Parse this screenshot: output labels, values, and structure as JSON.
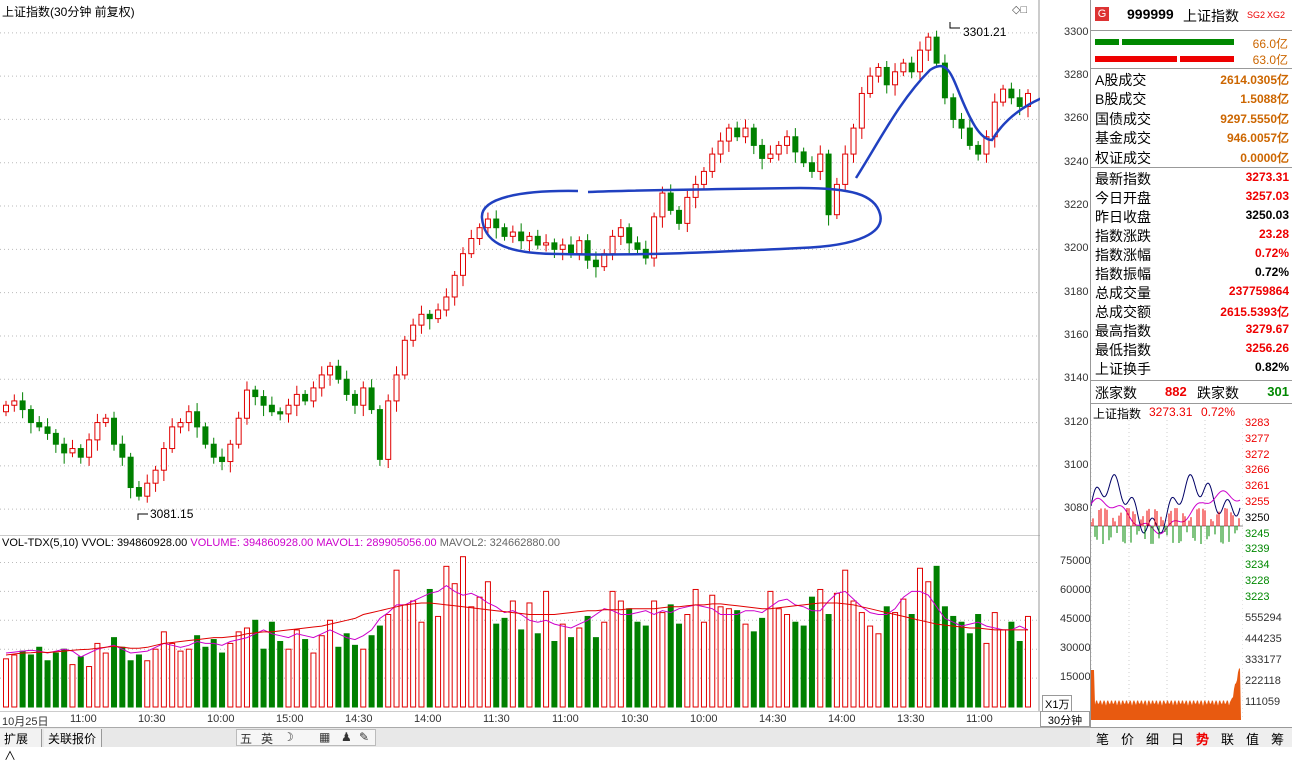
{
  "chart_header": {
    "title": "上证指数(30分钟 前复权)",
    "high_label": "3301.21",
    "low_label": "3081.15"
  },
  "volume_header": {
    "indicator": "VOL-TDX(5,10)",
    "vvol": "VVOL: 394860928.00",
    "volume": "VOLUME: 394860928.00",
    "mavol1": "MAVOL1: 289905056.00",
    "mavol2": "MAVOL2: 324662880.00",
    "unit": "X1万"
  },
  "colors": {
    "up": "#e00000",
    "down": "#008000",
    "ma1": "#cc00cc",
    "ma2": "#e00000",
    "annotation": "#2040c0"
  },
  "price_ticks": [
    "3300",
    "3280",
    "3260",
    "3240",
    "3220",
    "3200",
    "3180",
    "3160",
    "3140",
    "3120",
    "3100",
    "3080"
  ],
  "volume_ticks": [
    "75000",
    "60000",
    "45000",
    "30000",
    "15000"
  ],
  "time_labels": [
    "10月25日",
    "11:00",
    "10:30",
    "10:00",
    "15:00",
    "14:30",
    "14:00",
    "11:30",
    "11:00",
    "10:30",
    "10:00",
    "14:30",
    "14:00",
    "13:30",
    "11:00"
  ],
  "chart_data": {
    "type": "candlestick",
    "title": "上证指数(30分钟 前复权)",
    "ylim": [
      3070,
      3310
    ],
    "high": 3301.21,
    "low": 3081.15,
    "closes": [
      3128,
      3130,
      3126,
      3120,
      3118,
      3115,
      3110,
      3106,
      3108,
      3104,
      3112,
      3120,
      3122,
      3110,
      3104,
      3090,
      3086,
      3092,
      3098,
      3108,
      3118,
      3120,
      3125,
      3118,
      3110,
      3104,
      3102,
      3110,
      3122,
      3135,
      3132,
      3128,
      3125,
      3124,
      3128,
      3133,
      3130,
      3136,
      3142,
      3146,
      3140,
      3133,
      3128,
      3136,
      3126,
      3103,
      3130,
      3142,
      3158,
      3165,
      3170,
      3168,
      3172,
      3178,
      3188,
      3198,
      3205,
      3210,
      3214,
      3210,
      3206,
      3208,
      3204,
      3206,
      3202,
      3203,
      3200,
      3202,
      3198,
      3204,
      3195,
      3192,
      3198,
      3206,
      3210,
      3203,
      3200,
      3196,
      3215,
      3226,
      3218,
      3212,
      3224,
      3230,
      3236,
      3244,
      3250,
      3256,
      3252,
      3256,
      3248,
      3242,
      3244,
      3248,
      3252,
      3245,
      3240,
      3236,
      3244,
      3216,
      3230,
      3244,
      3256,
      3272,
      3280,
      3284,
      3276,
      3282,
      3286,
      3282,
      3292,
      3298,
      3286,
      3270,
      3260,
      3256,
      3248,
      3244,
      3252,
      3268,
      3274,
      3270,
      3266,
      3272
    ],
    "volumes": [
      25000,
      27000,
      29000,
      27000,
      31000,
      24000,
      28000,
      30000,
      22000,
      26000,
      21000,
      33000,
      28000,
      36000,
      31000,
      24000,
      27000,
      24000,
      30000,
      39000,
      33000,
      29000,
      30000,
      37000,
      31000,
      35000,
      28000,
      33000,
      39000,
      41000,
      45000,
      30000,
      44000,
      34000,
      30000,
      40000,
      35000,
      28000,
      37000,
      45000,
      31000,
      38000,
      32000,
      30000,
      37000,
      42000,
      48000,
      71000,
      53000,
      55000,
      44000,
      61000,
      47000,
      73000,
      64000,
      78000,
      52000,
      57000,
      65000,
      43000,
      46000,
      55000,
      40000,
      54000,
      38000,
      60000,
      34000,
      43000,
      36000,
      41000,
      47000,
      36000,
      44000,
      60000,
      55000,
      51000,
      44000,
      42000,
      55000,
      49000,
      53000,
      43000,
      48000,
      61000,
      44000,
      58000,
      52000,
      51000,
      50000,
      43000,
      39000,
      46000,
      60000,
      51000,
      48000,
      44000,
      42000,
      57000,
      61000,
      48000,
      59000,
      71000,
      55000,
      49000,
      42000,
      38000,
      52000,
      49000,
      56000,
      48000,
      72000,
      65000,
      73000,
      52000,
      47000,
      44000,
      38000,
      48000,
      33000,
      49000,
      40000,
      44000,
      34000,
      47000
    ],
    "mavol1": [
      28000,
      28500,
      29000,
      29500,
      29000,
      28000,
      29000,
      30000,
      29000,
      26000,
      28000,
      30000,
      31000,
      32000,
      30000,
      28000,
      28500,
      29000,
      31000,
      33000,
      32000,
      31000,
      32000,
      34000,
      33000,
      33000,
      32000,
      34000,
      35000,
      36000,
      38000,
      40000,
      38000,
      37000,
      36000,
      38000,
      37000,
      36000,
      38000,
      40000,
      38000,
      36000,
      35000,
      37000,
      40000,
      46000,
      49000,
      53000,
      53000,
      55000,
      57000,
      59000,
      60000,
      63000,
      60000,
      58000,
      59000,
      57000,
      54000,
      52000,
      49000,
      50000,
      48000,
      45000,
      44000,
      45000,
      43000,
      42000,
      41000,
      43000,
      45000,
      48000,
      51000,
      50000,
      48000,
      48000,
      49000,
      50000,
      48000,
      50000,
      49000,
      51000,
      52000,
      53000,
      52000,
      51000,
      48000,
      48000,
      48000,
      50000,
      50000,
      49000,
      52000,
      55000,
      56000,
      53000,
      52000,
      50000,
      50000,
      55000,
      59000,
      60000,
      56000,
      52000,
      49000,
      48000,
      48000,
      51000,
      57000,
      60000,
      60000,
      58000,
      52000,
      46000,
      44000,
      42000,
      43000,
      44000,
      42000,
      41000,
      40000,
      40000,
      42000,
      40000
    ],
    "mavol2": [
      27000,
      27500,
      28000,
      28200,
      28500,
      28300,
      28600,
      29000,
      29500,
      29800,
      30000,
      30500,
      31000,
      31500,
      31000,
      30500,
      30500,
      31000,
      32000,
      33000,
      33500,
      34000,
      34500,
      35000,
      35500,
      36000,
      36000,
      36500,
      37000,
      38000,
      38500,
      39000,
      39000,
      39500,
      40000,
      40500,
      41000,
      41500,
      42000,
      43000,
      44000,
      45000,
      46000,
      48000,
      49000,
      50000,
      51000,
      52000,
      53000,
      53500,
      54000,
      54000,
      53500,
      53000,
      52500,
      52000,
      51500,
      51000,
      50500,
      50000,
      49500,
      49000,
      48500,
      48000,
      48000,
      48000,
      48000,
      48500,
      49000,
      49500,
      50000,
      50000,
      50500,
      50500,
      50500,
      51000,
      51000,
      51000,
      51000,
      51500,
      52000,
      52000,
      52500,
      53000,
      53000,
      53500,
      53500,
      53000,
      52500,
      52000,
      51500,
      51000,
      51000,
      51500,
      52000,
      52500,
      53000,
      53500,
      54000,
      54000,
      54000,
      53500,
      53000,
      52000,
      51000,
      50000,
      49000,
      48000,
      47000,
      46000,
      45000,
      44000,
      43000,
      42500,
      42000,
      41500,
      41000,
      41000,
      40500,
      40000,
      40000,
      40000,
      40000,
      40000
    ]
  },
  "right_panel": {
    "code": "999999",
    "name": "上证指数",
    "badge": "G",
    "tags": [
      "SG2",
      "XG2"
    ],
    "bar1_val": "66.0亿",
    "bar2_val": "63.0亿",
    "trade_rows": [
      {
        "label": "A股成交",
        "value": "2614.0305亿"
      },
      {
        "label": "B股成交",
        "value": "1.5088亿"
      },
      {
        "label": "国债成交",
        "value": "9297.5550亿"
      },
      {
        "label": "基金成交",
        "value": "946.0057亿"
      },
      {
        "label": "权证成交",
        "value": "0.0000亿"
      }
    ],
    "index_rows": [
      {
        "label": "最新指数",
        "value": "3273.31",
        "color": "red"
      },
      {
        "label": "今日开盘",
        "value": "3257.03",
        "color": "red"
      },
      {
        "label": "昨日收盘",
        "value": "3250.03",
        "color": "blk"
      },
      {
        "label": "指数涨跌",
        "value": "23.28",
        "color": "red"
      },
      {
        "label": "指数涨幅",
        "value": "0.72%",
        "color": "red"
      },
      {
        "label": "指数振幅",
        "value": "0.72%",
        "color": "blk"
      },
      {
        "label": "总成交量",
        "value": "237759864",
        "color": "red"
      },
      {
        "label": "总成交额",
        "value": "2615.5393亿",
        "color": "red"
      },
      {
        "label": "最高指数",
        "value": "3279.67",
        "color": "red"
      },
      {
        "label": "最低指数",
        "value": "3256.26",
        "color": "red"
      },
      {
        "label": "上证换手",
        "value": "0.82%",
        "color": "blk"
      }
    ],
    "up_label": "涨家数",
    "up_count": "882",
    "down_label": "跌家数",
    "down_count": "301",
    "mini_title": "上证指数",
    "mini_price": "3273.31",
    "mini_pct": "0.72%",
    "mini_price_ticks": [
      "3283",
      "3277",
      "3272",
      "3266",
      "3261",
      "3255",
      "3250",
      "3245",
      "3239",
      "3234",
      "3228",
      "3223"
    ],
    "mini_vol_ticks": [
      "555294",
      "444235",
      "333177",
      "222118",
      "111059"
    ],
    "tabs": [
      "笔",
      "价",
      "细",
      "日",
      "势",
      "联",
      "值",
      "筹"
    ]
  },
  "bottom_bar": {
    "tab1": "扩展∧",
    "tab2": "关联报价",
    "ime": [
      "五",
      "英",
      "☽",
      "▦",
      "♟",
      "✎"
    ]
  },
  "period": "30分钟"
}
